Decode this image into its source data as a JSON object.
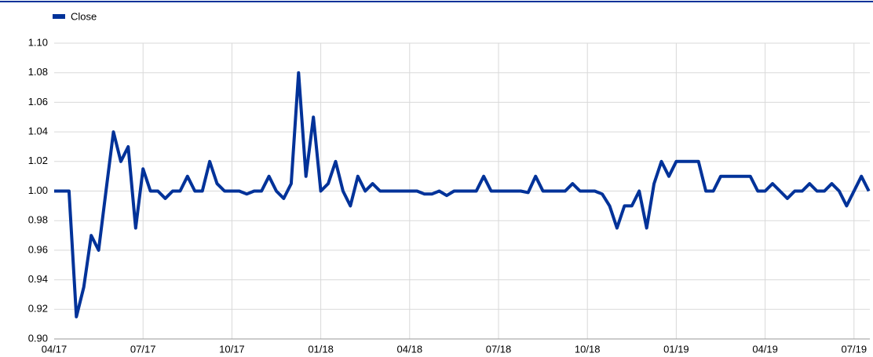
{
  "chart_data": {
    "type": "line",
    "categories": [
      "04/17",
      null,
      null,
      null,
      null,
      null,
      null,
      null,
      null,
      null,
      null,
      null,
      "07/17",
      null,
      null,
      null,
      null,
      null,
      null,
      null,
      null,
      null,
      null,
      null,
      "10/17",
      null,
      null,
      null,
      null,
      null,
      null,
      null,
      null,
      null,
      null,
      null,
      "01/18",
      null,
      null,
      null,
      null,
      null,
      null,
      null,
      null,
      null,
      null,
      null,
      "04/18",
      null,
      null,
      null,
      null,
      null,
      null,
      null,
      null,
      null,
      null,
      null,
      "07/18",
      null,
      null,
      null,
      null,
      null,
      null,
      null,
      null,
      null,
      null,
      null,
      "10/18",
      null,
      null,
      null,
      null,
      null,
      null,
      null,
      null,
      null,
      null,
      null,
      "01/19",
      null,
      null,
      null,
      null,
      null,
      null,
      null,
      null,
      null,
      null,
      null,
      "04/19",
      null,
      null,
      null,
      null,
      null,
      null,
      null,
      null,
      null,
      null,
      null,
      "07/19",
      null,
      null
    ],
    "series": [
      {
        "name": "Close",
        "color": "#003299",
        "values": [
          1.0,
          1.0,
          1.0,
          0.915,
          0.935,
          0.97,
          0.96,
          1.0,
          1.04,
          1.02,
          1.03,
          0.975,
          1.015,
          1.0,
          1.0,
          0.995,
          1.0,
          1.0,
          1.01,
          1.0,
          1.0,
          1.02,
          1.005,
          1.0,
          1.0,
          1.0,
          0.998,
          1.0,
          1.0,
          1.01,
          1.0,
          0.995,
          1.005,
          1.08,
          1.01,
          1.05,
          1.0,
          1.005,
          1.02,
          1.0,
          0.99,
          1.01,
          1.0,
          1.005,
          1.0,
          1.0,
          1.0,
          1.0,
          1.0,
          1.0,
          0.998,
          0.998,
          1.0,
          0.997,
          1.0,
          1.0,
          1.0,
          1.0,
          1.01,
          1.0,
          1.0,
          1.0,
          1.0,
          1.0,
          0.999,
          1.01,
          1.0,
          1.0,
          1.0,
          1.0,
          1.005,
          1.0,
          1.0,
          1.0,
          0.998,
          0.99,
          0.975,
          0.99,
          0.99,
          1.0,
          0.975,
          1.005,
          1.02,
          1.01,
          1.02,
          1.02,
          1.02,
          1.02,
          1.0,
          1.0,
          1.01,
          1.01,
          1.01,
          1.01,
          1.01,
          1.0,
          1.0,
          1.005,
          1.0,
          0.995,
          1.0,
          1.0,
          1.005,
          1.0,
          1.0,
          1.005,
          1.0,
          0.99,
          1.0,
          1.01,
          1.0
        ]
      }
    ],
    "ylim": [
      0.9,
      1.1
    ],
    "yticks": [
      {
        "value": 0.9,
        "label": "0.90"
      },
      {
        "value": 0.92,
        "label": "0.92"
      },
      {
        "value": 0.94,
        "label": "0.94"
      },
      {
        "value": 0.96,
        "label": "0.96"
      },
      {
        "value": 0.98,
        "label": "0.98"
      },
      {
        "value": 1.0,
        "label": "1.00"
      },
      {
        "value": 1.02,
        "label": "1.02"
      },
      {
        "value": 1.04,
        "label": "1.04"
      },
      {
        "value": 1.06,
        "label": "1.06"
      },
      {
        "value": 1.08,
        "label": "1.08"
      },
      {
        "value": 1.1,
        "label": "1.10"
      }
    ],
    "grid": true,
    "legend": "top-left"
  }
}
